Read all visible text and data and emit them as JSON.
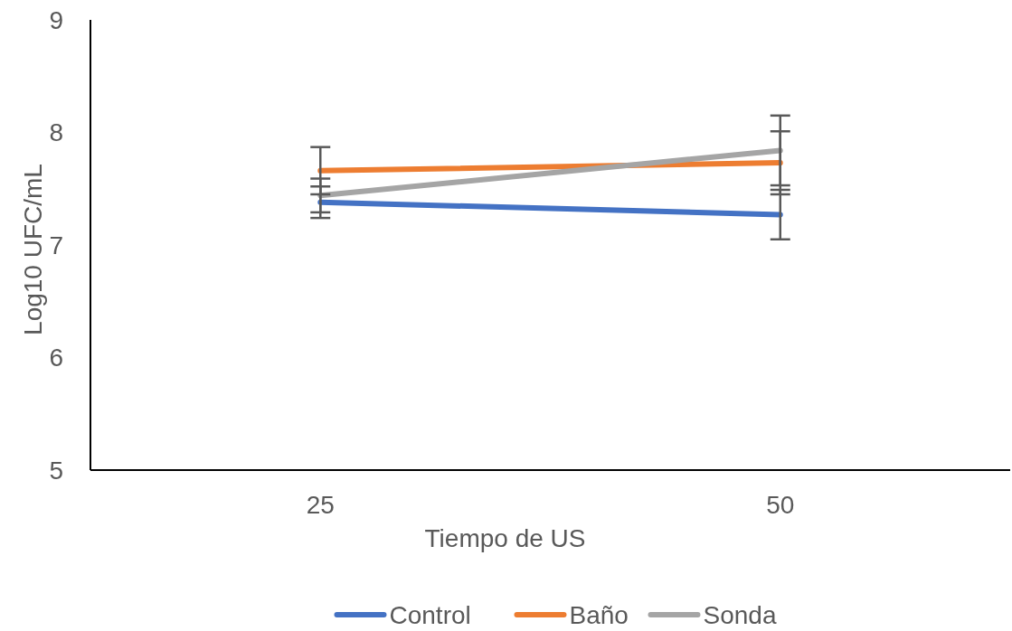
{
  "chart_data": {
    "type": "line",
    "xlabel": "Tiempo de US",
    "ylabel": "Log10 UFC/mL",
    "categories": [
      "25",
      "50"
    ],
    "ylim": [
      5,
      9
    ],
    "yticks": [
      5,
      6,
      7,
      8,
      9
    ],
    "grid": false,
    "legend": "bottom",
    "marker": "none",
    "line_style": "solid",
    "series": [
      {
        "name": "Control",
        "color": "#4472c4",
        "values": [
          7.38,
          7.27
        ],
        "errors": [
          0.14,
          0.22
        ]
      },
      {
        "name": "Baño",
        "color": "#ed7d31",
        "values": [
          7.66,
          7.73
        ],
        "errors": [
          0.21,
          0.28
        ]
      },
      {
        "name": "Sonda",
        "color": "#a5a5a5",
        "values": [
          7.44,
          7.84
        ],
        "errors": [
          0.15,
          0.31
        ]
      }
    ]
  }
}
